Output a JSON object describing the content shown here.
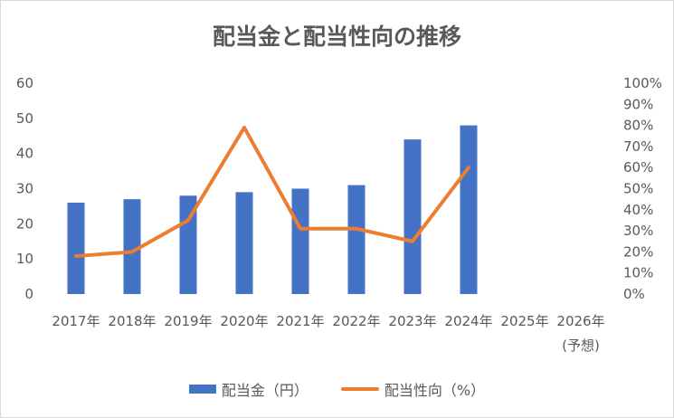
{
  "chart_data": {
    "type": "bar",
    "title": "配当金と配当性向の推移",
    "categories": [
      "2017年",
      "2018年",
      "2019年",
      "2020年",
      "2021年",
      "2022年",
      "2023年",
      "2024年",
      "2025年",
      "2026年"
    ],
    "category_sublabels": [
      "",
      "",
      "",
      "",
      "",
      "",
      "",
      "",
      "",
      "(予想)"
    ],
    "series": [
      {
        "name": "配当金（円）",
        "type": "bar",
        "axis": "left",
        "color": "#4472c4",
        "values": [
          26,
          27,
          28,
          29,
          30,
          31,
          44,
          48,
          null,
          null
        ]
      },
      {
        "name": "配当性向（%）",
        "type": "line",
        "axis": "right",
        "color": "#ed7d31",
        "values": [
          18,
          20,
          35,
          79,
          31,
          31,
          25,
          60,
          null,
          null
        ]
      }
    ],
    "y_left": {
      "lim": [
        0,
        60
      ],
      "ticks": [
        "0",
        "10",
        "20",
        "30",
        "40",
        "50",
        "60"
      ]
    },
    "y_right": {
      "lim": [
        0,
        100
      ],
      "ticks": [
        "0%",
        "10%",
        "20%",
        "30%",
        "40%",
        "50%",
        "60%",
        "70%",
        "80%",
        "90%",
        "100%"
      ]
    },
    "grid": false,
    "legend": "bottom"
  }
}
